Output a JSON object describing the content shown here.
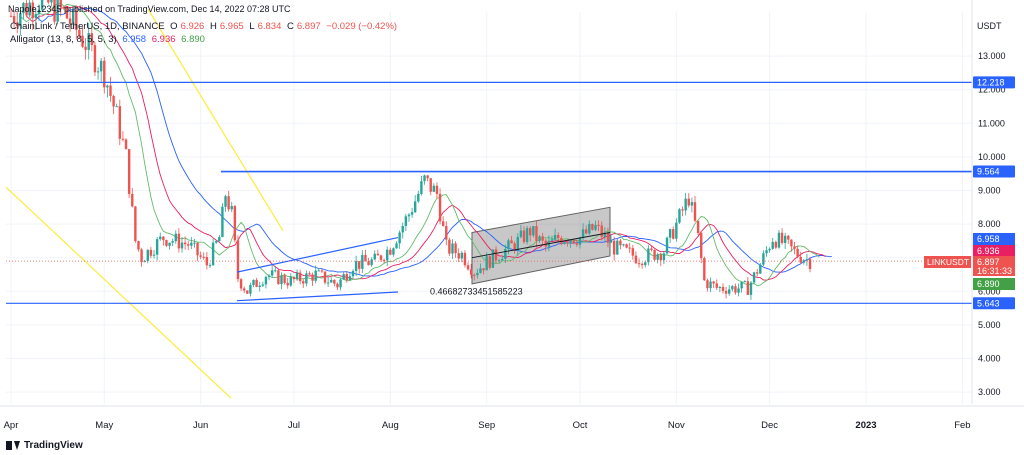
{
  "publish_line": "Napole12345 published on TradingView.com, Dec 14, 2022 07:28 UTC",
  "legend": {
    "symbol": "ChainLink / TetherUS, 1D, BINANCE",
    "o_label": "O",
    "o": "6.926",
    "h_label": "H",
    "h": "6.965",
    "l_label": "L",
    "l": "6.834",
    "c_label": "C",
    "c": "6.897",
    "change": "−0.029 (−0.42%)",
    "alligator_label": "Alligator (13, 8, 8, 5, 5, 3)",
    "jaw": "6.958",
    "teeth": "6.936",
    "lips": "6.890"
  },
  "watermark": "TradingView",
  "colors": {
    "up": "#26a69a",
    "down": "#ef5350",
    "jaw": "#2962ff",
    "teeth": "#e91e63",
    "lips": "#66bb6a",
    "hline": "#2962ff",
    "trend": "#ffeb3b",
    "channel": "#616161"
  },
  "chart_data": {
    "type": "candlestick",
    "currency": "USDT",
    "ylim": [
      2.6,
      14.9
    ],
    "y_ticks": [
      "13.000",
      "12.000",
      "11.000",
      "10.000",
      "9.000",
      "8.000",
      "7.000",
      "6.000",
      "5.000",
      "4.000",
      "3.000"
    ],
    "y_tick_values": [
      13,
      12,
      11,
      10,
      9,
      8,
      7,
      6,
      5,
      4,
      3
    ],
    "x_ticks": [
      {
        "label": "Apr",
        "date": "2022-04-01"
      },
      {
        "label": "May",
        "date": "2022-05-01"
      },
      {
        "label": "Jun",
        "date": "2022-06-01"
      },
      {
        "label": "Jul",
        "date": "2022-07-01"
      },
      {
        "label": "Aug",
        "date": "2022-08-01"
      },
      {
        "label": "Sep",
        "date": "2022-09-01"
      },
      {
        "label": "Oct",
        "date": "2022-10-01"
      },
      {
        "label": "Nov",
        "date": "2022-11-01"
      },
      {
        "label": "Dec",
        "date": "2022-12-01"
      },
      {
        "label": "2023",
        "date": "2023-01-01"
      },
      {
        "label": "Feb",
        "date": "2023-02-01"
      }
    ],
    "price_points": [
      {
        "date": "2022-04-01",
        "price": 14.2
      },
      {
        "date": "2022-04-10",
        "price": 14.7
      },
      {
        "date": "2022-04-18",
        "price": 14.3
      },
      {
        "date": "2022-04-25",
        "price": 13.4
      },
      {
        "date": "2022-05-01",
        "price": 12.5
      },
      {
        "date": "2022-05-05",
        "price": 11.2
      },
      {
        "date": "2022-05-08",
        "price": 10.0
      },
      {
        "date": "2022-05-11",
        "price": 7.5
      },
      {
        "date": "2022-05-13",
        "price": 7.0
      },
      {
        "date": "2022-05-20",
        "price": 7.6
      },
      {
        "date": "2022-05-28",
        "price": 7.4
      },
      {
        "date": "2022-06-03",
        "price": 6.8
      },
      {
        "date": "2022-06-07",
        "price": 7.6
      },
      {
        "date": "2022-06-09",
        "price": 8.9
      },
      {
        "date": "2022-06-11",
        "price": 8.3
      },
      {
        "date": "2022-06-13",
        "price": 6.4
      },
      {
        "date": "2022-06-16",
        "price": 6.0
      },
      {
        "date": "2022-06-22",
        "price": 6.5
      },
      {
        "date": "2022-06-30",
        "price": 6.3
      },
      {
        "date": "2022-07-08",
        "price": 6.5
      },
      {
        "date": "2022-07-15",
        "price": 6.2
      },
      {
        "date": "2022-07-20",
        "price": 6.8
      },
      {
        "date": "2022-07-27",
        "price": 6.9
      },
      {
        "date": "2022-08-01",
        "price": 7.3
      },
      {
        "date": "2022-08-07",
        "price": 8.3
      },
      {
        "date": "2022-08-12",
        "price": 9.3
      },
      {
        "date": "2022-08-16",
        "price": 8.9
      },
      {
        "date": "2022-08-19",
        "price": 7.3
      },
      {
        "date": "2022-08-24",
        "price": 7.1
      },
      {
        "date": "2022-08-28",
        "price": 6.6
      },
      {
        "date": "2022-09-03",
        "price": 7.0
      },
      {
        "date": "2022-09-10",
        "price": 7.4
      },
      {
        "date": "2022-09-15",
        "price": 7.8
      },
      {
        "date": "2022-09-20",
        "price": 7.3
      },
      {
        "date": "2022-09-24",
        "price": 7.6
      },
      {
        "date": "2022-10-01",
        "price": 7.6
      },
      {
        "date": "2022-10-06",
        "price": 7.9
      },
      {
        "date": "2022-10-12",
        "price": 7.3
      },
      {
        "date": "2022-10-20",
        "price": 7.0
      },
      {
        "date": "2022-10-28",
        "price": 7.2
      },
      {
        "date": "2022-11-05",
        "price": 8.8
      },
      {
        "date": "2022-11-08",
        "price": 7.6
      },
      {
        "date": "2022-11-10",
        "price": 6.3
      },
      {
        "date": "2022-11-14",
        "price": 6.1
      },
      {
        "date": "2022-11-20",
        "price": 6.1
      },
      {
        "date": "2022-11-24",
        "price": 6.1
      },
      {
        "date": "2022-11-28",
        "price": 6.8
      },
      {
        "date": "2022-12-02",
        "price": 7.6
      },
      {
        "date": "2022-12-06",
        "price": 7.4
      },
      {
        "date": "2022-12-10",
        "price": 7.1
      },
      {
        "date": "2022-12-14",
        "price": 6.9
      }
    ],
    "horizontal_levels": [
      {
        "value": 12.218,
        "label": "12.218"
      },
      {
        "value": 9.564,
        "label": "9.564"
      },
      {
        "value": 5.643,
        "label": "5.643"
      }
    ],
    "axis_badges": [
      {
        "value": 6.958,
        "label": "6.958",
        "kind": "jaw"
      },
      {
        "value": 6.936,
        "label": "6.936",
        "kind": "teeth"
      },
      {
        "value": 6.89,
        "label": "6.890",
        "kind": "lips"
      }
    ],
    "last_price": {
      "symbol": "LINKUSDT",
      "value": 6.897,
      "label": "6.897",
      "countdown": "16:31:33"
    },
    "annotation": "0.46682733451585223"
  }
}
